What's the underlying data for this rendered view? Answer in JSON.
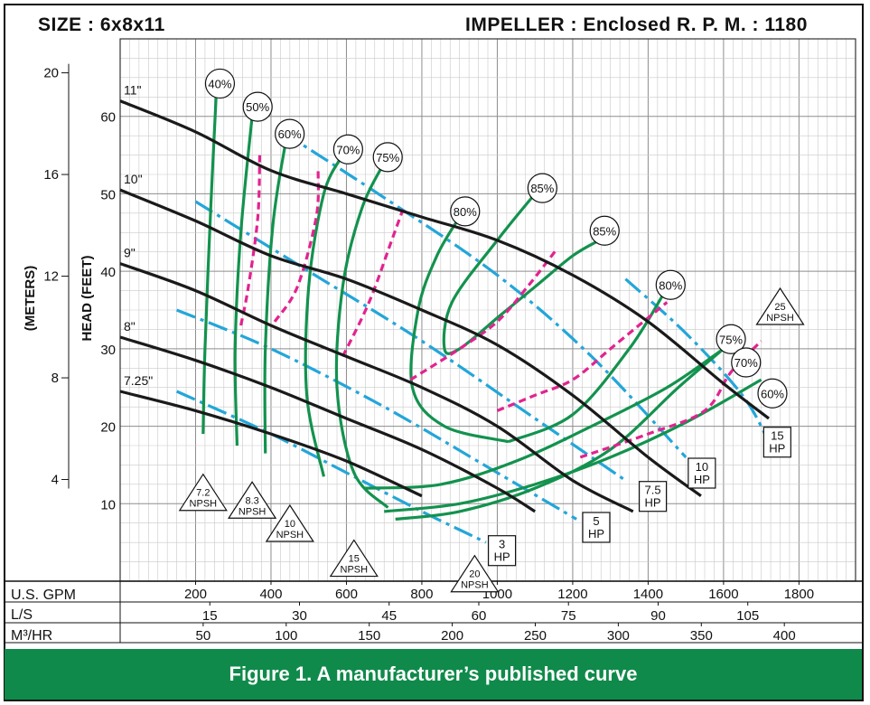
{
  "header": {
    "size_label": "SIZE :  6x8x11",
    "impeller_label": "IMPELLER :  Enclosed  R. P. M. :  1180"
  },
  "caption": "Figure 1. A manufacturer’s published curve",
  "colors": {
    "impeller": "#1a1a1a",
    "efficiency": "#13924e",
    "npsh": "#e2238f",
    "horsepower": "#23a6d9",
    "grid": "#a8a8a8",
    "caption_bg": "#0f8a4a"
  },
  "chart_data": {
    "type": "line",
    "xlabel": "U.S. GPM",
    "ylabel": "HEAD (FEET)",
    "y2label": "(METERS)",
    "xlim": [
      0,
      1950
    ],
    "ylim": [
      0,
      70
    ],
    "x_ticks": [
      200,
      400,
      600,
      800,
      1000,
      1200,
      1400,
      1600,
      1800
    ],
    "y_ticks": [
      10,
      20,
      30,
      40,
      50,
      60
    ],
    "meters_ticks": [
      4,
      8,
      12,
      16,
      20
    ],
    "secondary_axes": [
      {
        "label": "L/S",
        "ticks": [
          15,
          30,
          45,
          60,
          75,
          90,
          105
        ]
      },
      {
        "label": "M³/HR",
        "ticks": [
          50,
          100,
          150,
          200,
          250,
          300,
          350,
          400
        ]
      }
    ],
    "grid": true,
    "impeller_curves": [
      {
        "name": "11\"",
        "points": [
          [
            0,
            62
          ],
          [
            200,
            58
          ],
          [
            400,
            53
          ],
          [
            600,
            50
          ],
          [
            800,
            47
          ],
          [
            1000,
            44
          ],
          [
            1200,
            39.5
          ],
          [
            1400,
            33.5
          ],
          [
            1600,
            25.5
          ],
          [
            1720,
            21
          ]
        ]
      },
      {
        "name": "10\"",
        "points": [
          [
            0,
            50.5
          ],
          [
            200,
            46.5
          ],
          [
            400,
            42
          ],
          [
            600,
            39
          ],
          [
            800,
            35
          ],
          [
            1000,
            30.5
          ],
          [
            1200,
            24
          ],
          [
            1400,
            16
          ],
          [
            1540,
            11
          ]
        ]
      },
      {
        "name": "9\"",
        "points": [
          [
            0,
            41
          ],
          [
            200,
            37.5
          ],
          [
            400,
            33
          ],
          [
            600,
            29
          ],
          [
            800,
            25
          ],
          [
            1000,
            20
          ],
          [
            1200,
            13
          ],
          [
            1360,
            9
          ]
        ]
      },
      {
        "name": "8\"",
        "points": [
          [
            0,
            31.5
          ],
          [
            200,
            28.5
          ],
          [
            400,
            25
          ],
          [
            600,
            21
          ],
          [
            800,
            17
          ],
          [
            1000,
            12
          ],
          [
            1100,
            9
          ]
        ]
      },
      {
        "name": "7.25\"",
        "points": [
          [
            0,
            24.5
          ],
          [
            200,
            22
          ],
          [
            400,
            19
          ],
          [
            600,
            15.5
          ],
          [
            800,
            11
          ]
        ]
      }
    ],
    "efficiency_curves": [
      {
        "name": "40%",
        "points": [
          [
            220,
            19
          ],
          [
            225,
            30
          ],
          [
            240,
            48
          ],
          [
            255,
            63
          ]
        ]
      },
      {
        "name": "50%",
        "points": [
          [
            310,
            17.5
          ],
          [
            305,
            30
          ],
          [
            320,
            45
          ],
          [
            350,
            60
          ]
        ]
      },
      {
        "name": "60%",
        "points": [
          [
            385,
            16.5
          ],
          [
            385,
            30
          ],
          [
            405,
            46
          ],
          [
            440,
            57
          ]
        ]
      },
      {
        "name": "70%",
        "points": [
          [
            540,
            13.5
          ],
          [
            495,
            24
          ],
          [
            500,
            38
          ],
          [
            540,
            50
          ],
          [
            590,
            55
          ]
        ]
      },
      {
        "name": "75%",
        "points": [
          [
            710,
            9.5
          ],
          [
            620,
            14
          ],
          [
            575,
            25
          ],
          [
            590,
            38
          ],
          [
            640,
            48
          ],
          [
            700,
            54
          ]
        ]
      },
      {
        "name": "75% lower",
        "points": [
          [
            730,
            8
          ],
          [
            900,
            9
          ],
          [
            1100,
            12
          ],
          [
            1300,
            17
          ],
          [
            1480,
            25
          ],
          [
            1600,
            30
          ]
        ]
      },
      {
        "name": "70% lower",
        "points": [
          [
            650,
            12
          ],
          [
            850,
            12.5
          ],
          [
            1050,
            15.5
          ],
          [
            1250,
            20
          ],
          [
            1450,
            25
          ],
          [
            1600,
            30
          ]
        ]
      },
      {
        "name": "60% lower",
        "points": [
          [
            700,
            9
          ],
          [
            900,
            10
          ],
          [
            1100,
            12.5
          ],
          [
            1300,
            16
          ],
          [
            1500,
            20.5
          ],
          [
            1700,
            26
          ]
        ]
      },
      {
        "name": "80%",
        "points": [
          [
            1030,
            18
          ],
          [
            860,
            20
          ],
          [
            775,
            25
          ],
          [
            790,
            35
          ],
          [
            840,
            42
          ],
          [
            900,
            47
          ]
        ]
      },
      {
        "name": "80% lower",
        "points": [
          [
            1030,
            18
          ],
          [
            1200,
            21.5
          ],
          [
            1350,
            30
          ],
          [
            1440,
            37
          ]
        ]
      },
      {
        "name": "85%",
        "points": [
          [
            1000,
            34
          ],
          [
            900,
            30
          ],
          [
            860,
            30
          ],
          [
            880,
            36
          ],
          [
            1000,
            44
          ],
          [
            1100,
            50
          ]
        ]
      },
      {
        "name": "85% lower",
        "points": [
          [
            1000,
            34
          ],
          [
            1100,
            38
          ],
          [
            1200,
            42
          ],
          [
            1270,
            44
          ]
        ]
      }
    ],
    "efficiency_labels": [
      {
        "text": "40%",
        "x": 255,
        "y": 64
      },
      {
        "text": "50%",
        "x": 355,
        "y": 61
      },
      {
        "text": "60%",
        "x": 440,
        "y": 57.5
      },
      {
        "text": "70%",
        "x": 595,
        "y": 55.5
      },
      {
        "text": "75%",
        "x": 700,
        "y": 54.5
      },
      {
        "text": "80%",
        "x": 905,
        "y": 47.5
      },
      {
        "text": "85%",
        "x": 1110,
        "y": 50.5
      },
      {
        "text": "85%",
        "x": 1275,
        "y": 45
      },
      {
        "text": "80%",
        "x": 1450,
        "y": 38
      },
      {
        "text": "75%",
        "x": 1610,
        "y": 31
      },
      {
        "text": "70%",
        "x": 1650,
        "y": 28
      },
      {
        "text": "60%",
        "x": 1720,
        "y": 24
      }
    ],
    "npsh_curves": [
      {
        "name": "7.2",
        "points": [
          [
            320,
            33
          ],
          [
            340,
            38
          ],
          [
            365,
            47
          ],
          [
            370,
            55
          ]
        ]
      },
      {
        "name": "8.3",
        "points": [
          [
            410,
            33.5
          ],
          [
            470,
            38
          ],
          [
            520,
            47
          ],
          [
            525,
            53
          ]
        ]
      },
      {
        "name": "10",
        "points": [
          [
            590,
            29
          ],
          [
            660,
            36
          ],
          [
            720,
            44
          ],
          [
            750,
            48
          ]
        ]
      },
      {
        "name": "15",
        "points": [
          [
            770,
            26
          ],
          [
            900,
            30
          ],
          [
            1000,
            33.5
          ],
          [
            1080,
            38
          ],
          [
            1160,
            43
          ]
        ]
      },
      {
        "name": "20",
        "points": [
          [
            1000,
            22
          ],
          [
            1100,
            24
          ],
          [
            1200,
            26
          ],
          [
            1300,
            30
          ],
          [
            1400,
            34
          ],
          [
            1450,
            36
          ]
        ]
      },
      {
        "name": "25",
        "points": [
          [
            1220,
            16
          ],
          [
            1400,
            19
          ],
          [
            1550,
            22
          ],
          [
            1620,
            27
          ],
          [
            1700,
            31
          ]
        ]
      }
    ],
    "npsh_labels": [
      {
        "text": "7.2",
        "sub": "NPSH",
        "x": 220,
        "y": 11
      },
      {
        "text": "8.3",
        "sub": "NPSH",
        "x": 350,
        "y": 10
      },
      {
        "text": "10",
        "sub": "NPSH",
        "x": 450,
        "y": 7
      },
      {
        "text": "15",
        "sub": "NPSH",
        "x": 620,
        "y": 2.5
      },
      {
        "text": "20",
        "sub": "NPSH",
        "x": 940,
        "y": 0.5
      },
      {
        "text": "25",
        "sub": "NPSH",
        "x": 1750,
        "y": 35
      }
    ],
    "horsepower_curves": [
      {
        "name": "3 HP",
        "points": [
          [
            150,
            24.5
          ],
          [
            400,
            19
          ],
          [
            600,
            14
          ],
          [
            800,
            9
          ],
          [
            970,
            5
          ]
        ]
      },
      {
        "name": "5 HP",
        "points": [
          [
            150,
            35
          ],
          [
            400,
            30
          ],
          [
            700,
            22.5
          ],
          [
            1000,
            14
          ],
          [
            1210,
            8
          ]
        ]
      },
      {
        "name": "7.5 HP",
        "points": [
          [
            200,
            49
          ],
          [
            500,
            40
          ],
          [
            800,
            31
          ],
          [
            1100,
            21
          ],
          [
            1340,
            13
          ]
        ]
      },
      {
        "name": "10 HP",
        "points": [
          [
            430,
            58
          ],
          [
            700,
            49.5
          ],
          [
            1000,
            39.5
          ],
          [
            1250,
            29
          ],
          [
            1500,
            16
          ]
        ]
      },
      {
        "name": "15 HP",
        "points": [
          [
            1340,
            39
          ],
          [
            1500,
            32
          ],
          [
            1650,
            24
          ],
          [
            1720,
            18
          ]
        ]
      }
    ],
    "horsepower_labels": [
      {
        "text": "3",
        "sub": "HP",
        "x": 1010,
        "y": 4
      },
      {
        "text": "5",
        "sub": "HP",
        "x": 1260,
        "y": 7
      },
      {
        "text": "7.5",
        "sub": "HP",
        "x": 1410,
        "y": 11
      },
      {
        "text": "10",
        "sub": "HP",
        "x": 1540,
        "y": 14
      },
      {
        "text": "15",
        "sub": "HP",
        "x": 1740,
        "y": 18
      }
    ],
    "impeller_labels": [
      "11\"",
      "10\"",
      "9\"",
      "8\"",
      "7.25\""
    ]
  }
}
